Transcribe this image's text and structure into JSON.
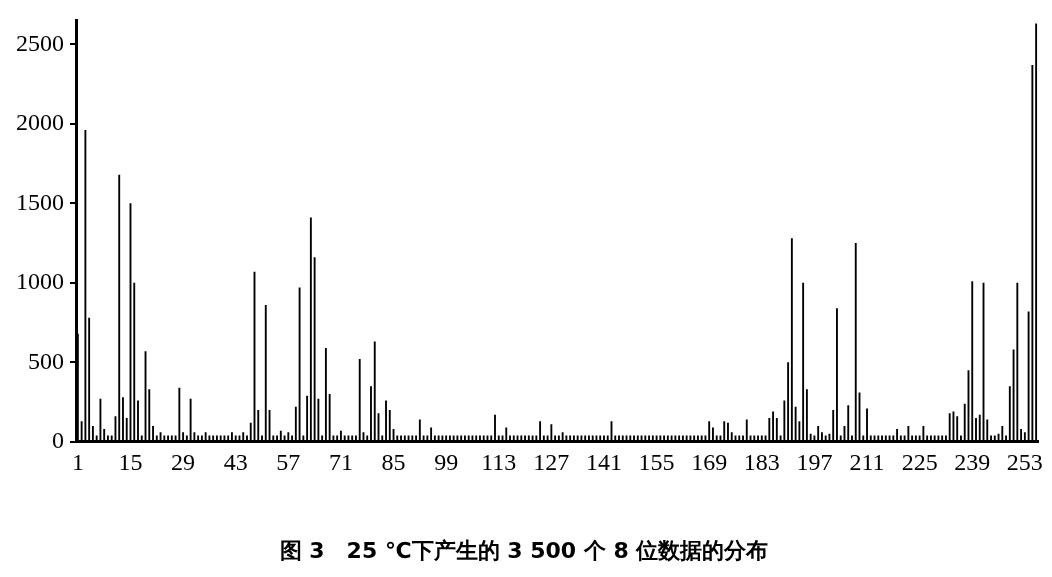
{
  "chart_data": {
    "type": "bar",
    "title": "图 3　25 ℃下产生的 3 500 个 8 位数据的分布",
    "categories": [
      "1",
      null,
      null,
      null,
      null,
      null,
      null,
      null,
      null,
      null,
      null,
      null,
      null,
      null,
      "15",
      null,
      null,
      null,
      null,
      null,
      null,
      null,
      null,
      null,
      null,
      null,
      null,
      null,
      "29",
      null,
      null,
      null,
      null,
      null,
      null,
      null,
      null,
      null,
      null,
      null,
      null,
      null,
      "43",
      null,
      null,
      null,
      null,
      null,
      null,
      null,
      null,
      null,
      null,
      null,
      null,
      null,
      "57",
      null,
      null,
      null,
      null,
      null,
      null,
      null,
      null,
      null,
      null,
      null,
      null,
      null,
      "71",
      null,
      null,
      null,
      null,
      null,
      null,
      null,
      null,
      null,
      null,
      null,
      null,
      null,
      "85",
      null,
      null,
      null,
      null,
      null,
      null,
      null,
      null,
      null,
      null,
      null,
      null,
      null,
      "99",
      null,
      null,
      null,
      null,
      null,
      null,
      null,
      null,
      null,
      null,
      null,
      null,
      null,
      "113",
      null,
      null,
      null,
      null,
      null,
      null,
      null,
      null,
      null,
      null,
      null,
      null,
      null,
      "127",
      null,
      null,
      null,
      null,
      null,
      null,
      null,
      null,
      null,
      null,
      null,
      null,
      null,
      "141",
      null,
      null,
      null,
      null,
      null,
      null,
      null,
      null,
      null,
      null,
      null,
      null,
      null,
      "155",
      null,
      null,
      null,
      null,
      null,
      null,
      null,
      null,
      null,
      null,
      null,
      null,
      null,
      "169",
      null,
      null,
      null,
      null,
      null,
      null,
      null,
      null,
      null,
      null,
      null,
      null,
      null,
      "183",
      null,
      null,
      null,
      null,
      null,
      null,
      null,
      null,
      null,
      null,
      null,
      null,
      null,
      "197",
      null,
      null,
      null,
      null,
      null,
      null,
      null,
      null,
      null,
      null,
      null,
      null,
      null,
      "211",
      null,
      null,
      null,
      null,
      null,
      null,
      null,
      null,
      null,
      null,
      null,
      null,
      null,
      "225",
      null,
      null,
      null,
      null,
      null,
      null,
      null,
      null,
      null,
      null,
      null,
      null,
      null,
      "239",
      null,
      null,
      null,
      null,
      null,
      null,
      null,
      null,
      null,
      null,
      null,
      null,
      null,
      "253",
      null,
      null,
      null
    ],
    "values": [
      680,
      130,
      1960,
      780,
      100,
      40,
      270,
      80,
      40,
      40,
      160,
      1680,
      280,
      150,
      1500,
      1000,
      260,
      40,
      570,
      330,
      100,
      40,
      60,
      40,
      40,
      40,
      40,
      340,
      60,
      40,
      270,
      60,
      40,
      40,
      60,
      40,
      40,
      40,
      40,
      40,
      40,
      60,
      40,
      40,
      60,
      40,
      120,
      1070,
      200,
      40,
      860,
      200,
      40,
      40,
      70,
      40,
      60,
      40,
      220,
      970,
      40,
      290,
      1410,
      1160,
      270,
      40,
      590,
      300,
      40,
      40,
      70,
      40,
      40,
      40,
      40,
      520,
      60,
      40,
      350,
      630,
      180,
      40,
      260,
      200,
      80,
      40,
      40,
      40,
      40,
      40,
      40,
      140,
      40,
      40,
      90,
      40,
      40,
      40,
      40,
      40,
      40,
      40,
      40,
      40,
      40,
      40,
      40,
      40,
      40,
      40,
      40,
      170,
      40,
      40,
      90,
      40,
      40,
      40,
      40,
      40,
      40,
      40,
      40,
      130,
      40,
      40,
      110,
      40,
      40,
      60,
      40,
      40,
      40,
      40,
      40,
      40,
      40,
      40,
      40,
      40,
      40,
      40,
      130,
      40,
      40,
      40,
      40,
      40,
      40,
      40,
      40,
      40,
      40,
      40,
      40,
      40,
      40,
      40,
      40,
      40,
      40,
      40,
      40,
      40,
      40,
      40,
      40,
      40,
      130,
      90,
      40,
      40,
      130,
      120,
      60,
      40,
      40,
      40,
      140,
      40,
      40,
      40,
      40,
      40,
      150,
      190,
      150,
      40,
      260,
      500,
      1280,
      220,
      130,
      1000,
      330,
      50,
      40,
      100,
      60,
      40,
      50,
      200,
      840,
      40,
      100,
      230,
      40,
      1250,
      310,
      40,
      210,
      40,
      40,
      40,
      40,
      40,
      40,
      40,
      80,
      40,
      40,
      100,
      40,
      40,
      40,
      100,
      40,
      40,
      40,
      40,
      40,
      40,
      180,
      190,
      160,
      40,
      240,
      450,
      1010,
      150,
      170,
      1000,
      140,
      40,
      40,
      50,
      100,
      40,
      350,
      580,
      1000,
      80,
      60,
      820,
      2370,
      2630
    ],
    "color": "#000000",
    "ylim": [
      0,
      2650
    ],
    "yticks": [
      0,
      500,
      1000,
      1500,
      2000,
      2500
    ]
  }
}
